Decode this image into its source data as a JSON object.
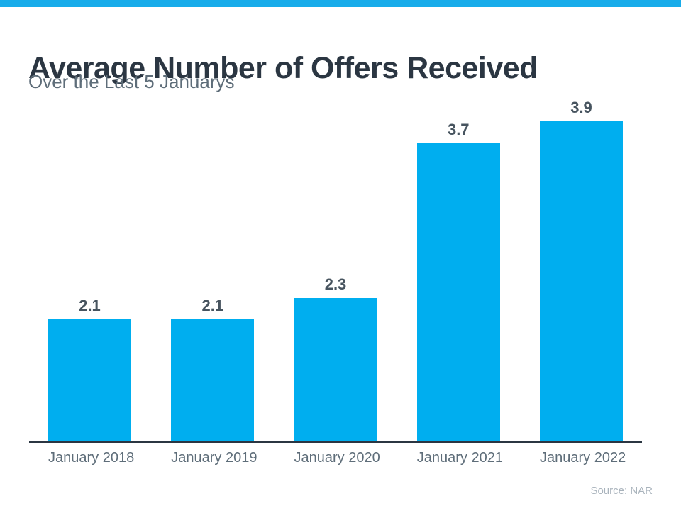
{
  "header": {
    "title": "Average Number of Offers Received",
    "subtitle": "Over the Last 5 Januarys"
  },
  "footer": {
    "source": "Source: NAR"
  },
  "colors": {
    "accent": "#00AEEF",
    "top_strip": "#18ACEA",
    "title_text": "#2B3642",
    "subtitle_text": "#5E6D79",
    "value_label": "#47545F",
    "axis_line": "#2B3642",
    "source_text": "#A9B3BC"
  },
  "chart_data": {
    "type": "bar",
    "title": "Average Number of Offers Received",
    "subtitle": "Over the Last 5 Januarys",
    "categories": [
      "January 2018",
      "January 2019",
      "January 2020",
      "January 2021",
      "January 2022"
    ],
    "values": [
      2.1,
      2.1,
      2.3,
      3.7,
      3.9
    ],
    "value_labels": [
      "2.1",
      "2.1",
      "2.3",
      "3.7",
      "3.9"
    ],
    "xlabel": "",
    "ylabel": "",
    "ylim": [
      1.0,
      4.0
    ],
    "grid": false,
    "legend": false,
    "bar_color": "#00AEEF",
    "source_note": "Source: NAR"
  }
}
